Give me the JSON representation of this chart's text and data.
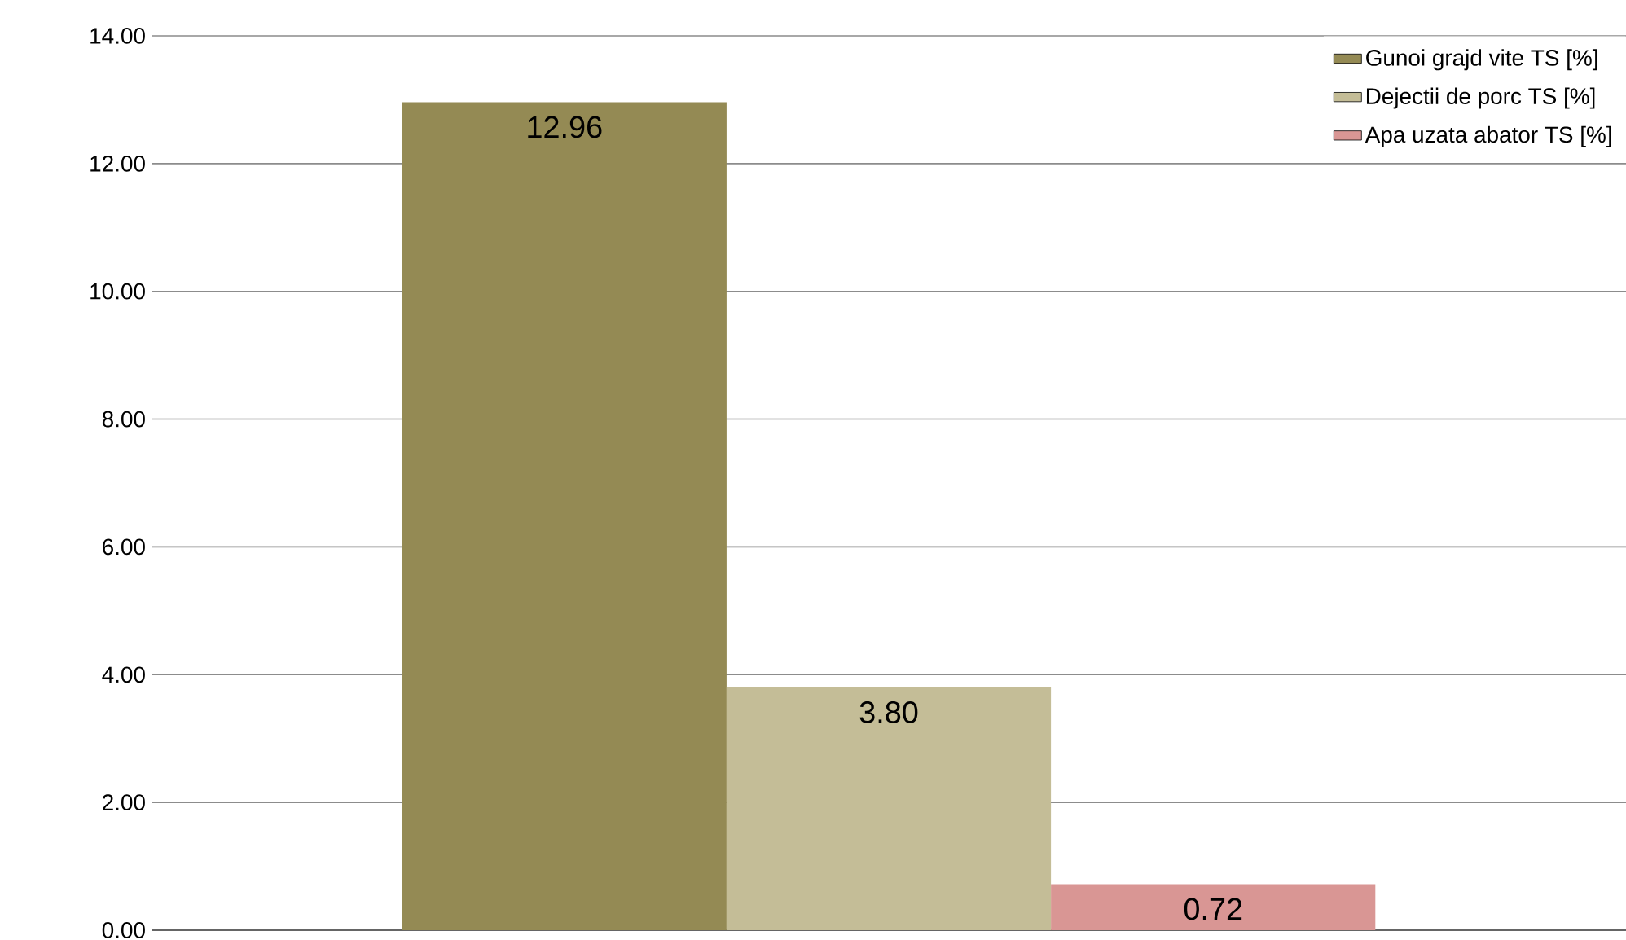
{
  "chart_data": {
    "type": "bar",
    "categories": [
      null
    ],
    "series": [
      {
        "name": "Gunoi grajd vite TS [%]",
        "color": "#948a54",
        "values": [
          12.96
        ],
        "value_labels": [
          "12.96"
        ]
      },
      {
        "name": "Dejectii de porc TS [%]",
        "color": "#c4bd97",
        "values": [
          3.8
        ],
        "value_labels": [
          "3.80"
        ]
      },
      {
        "name": "Apa uzata abator TS [%]",
        "color": "#d99694",
        "values": [
          0.72
        ],
        "value_labels": [
          "0.72"
        ]
      }
    ],
    "ylim": [
      0,
      14
    ],
    "yticks": [
      {
        "value": 0,
        "label": "0.00"
      },
      {
        "value": 2,
        "label": "2.00"
      },
      {
        "value": 4,
        "label": "4.00"
      },
      {
        "value": 6,
        "label": "6.00"
      },
      {
        "value": 8,
        "label": "8.00"
      },
      {
        "value": 10,
        "label": "10.00"
      },
      {
        "value": 12,
        "label": "12.00"
      },
      {
        "value": 14,
        "label": "14.00"
      }
    ],
    "grid": "y",
    "legend": "top right"
  }
}
